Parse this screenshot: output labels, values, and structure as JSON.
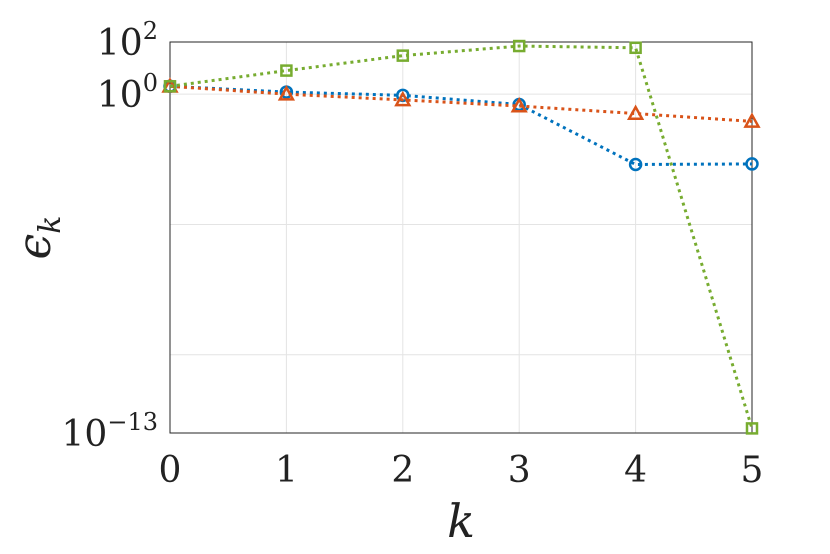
{
  "chart_data": {
    "type": "line",
    "xlabel_base": "ε",
    "xlabel": "k",
    "ylabel_base": "ϵ",
    "ylabel_sub": "k",
    "x": [
      0,
      1,
      2,
      3,
      4,
      5
    ],
    "xlim": [
      0,
      5
    ],
    "ylim": [
      1e-13,
      100
    ],
    "yscale": "log",
    "x_ticks": [
      "0",
      "1",
      "2",
      "3",
      "4",
      "5"
    ],
    "y_ticks": [
      {
        "base": "10",
        "exp": "2",
        "value": 100
      },
      {
        "base": "10",
        "exp": "0",
        "value": 1
      },
      {
        "base": "10",
        "exp": "−13",
        "value": 1e-13
      }
    ],
    "grid": true,
    "series": [
      {
        "marker": "circle",
        "color": "#0072BD",
        "values": [
          2.0,
          1.2,
          0.9,
          0.4,
          0.002,
          0.0021
        ]
      },
      {
        "marker": "triangle",
        "color": "#D95319",
        "values": [
          2.0,
          1.0,
          0.6,
          0.35,
          0.18,
          0.09
        ]
      },
      {
        "marker": "square",
        "color": "#77AC30",
        "values": [
          2.0,
          8.0,
          30.0,
          70.0,
          60.0,
          1.5e-13
        ]
      }
    ]
  }
}
